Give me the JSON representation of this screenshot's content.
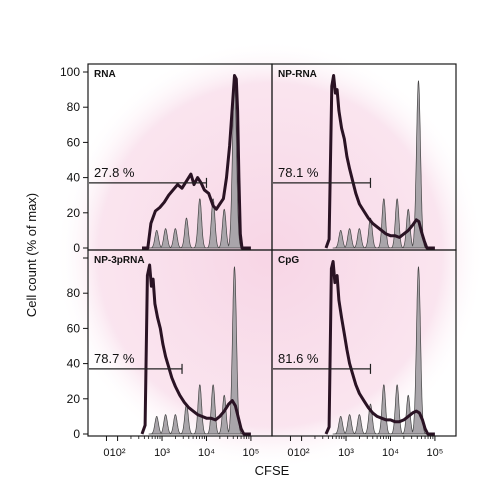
{
  "colors": {
    "background_glow": "#f7d3e4",
    "control_fill": "#a9a5aa",
    "sample_line": "#2a1324",
    "frame": "#1a1a1a"
  },
  "chart_data": {
    "type": "area",
    "layout": "2x2 grid",
    "xlabel": "CFSE",
    "ylabel": "Cell count (% of max)",
    "ylim": [
      0,
      100
    ],
    "y_ticks": [
      "0",
      "20",
      "40",
      "60",
      "80",
      "100"
    ],
    "x_ticks": [
      "0",
      "10²",
      "10³",
      "10⁴",
      "10⁵"
    ],
    "x_scale": "biexponential (log10 CFSE)",
    "gate_y": 37,
    "control_peaks": [
      {
        "x": 2.88,
        "height": 10
      },
      {
        "x": 3.08,
        "height": 11
      },
      {
        "x": 3.3,
        "height": 11
      },
      {
        "x": 3.55,
        "height": 17
      },
      {
        "x": 3.85,
        "height": 28
      },
      {
        "x": 4.15,
        "height": 28
      },
      {
        "x": 4.4,
        "height": 22
      },
      {
        "x": 4.63,
        "height": 95
      }
    ],
    "panels": [
      {
        "name": "RNA",
        "gate_label": "27.8 %",
        "gate_end": 4.0,
        "sample_curve": [
          [
            2.55,
            0
          ],
          [
            2.68,
            0
          ],
          [
            2.75,
            14
          ],
          [
            2.85,
            21
          ],
          [
            2.95,
            23
          ],
          [
            3.05,
            26
          ],
          [
            3.15,
            30
          ],
          [
            3.25,
            33
          ],
          [
            3.35,
            36
          ],
          [
            3.45,
            34
          ],
          [
            3.55,
            38
          ],
          [
            3.65,
            42
          ],
          [
            3.72,
            36
          ],
          [
            3.8,
            40
          ],
          [
            3.88,
            37
          ],
          [
            3.95,
            33
          ],
          [
            4.05,
            31
          ],
          [
            4.15,
            24
          ],
          [
            4.22,
            22
          ],
          [
            4.3,
            25
          ],
          [
            4.38,
            28
          ],
          [
            4.45,
            40
          ],
          [
            4.52,
            58
          ],
          [
            4.58,
            80
          ],
          [
            4.63,
            98
          ],
          [
            4.67,
            96
          ],
          [
            4.7,
            78
          ],
          [
            4.73,
            40
          ],
          [
            4.76,
            8
          ],
          [
            4.8,
            0
          ],
          [
            5.0,
            0
          ]
        ]
      },
      {
        "name": "NP-RNA",
        "gate_label": "78.1 %",
        "gate_end": 3.55,
        "sample_curve": [
          [
            2.55,
            0
          ],
          [
            2.62,
            5
          ],
          [
            2.68,
            92
          ],
          [
            2.72,
            98
          ],
          [
            2.76,
            88
          ],
          [
            2.8,
            90
          ],
          [
            2.84,
            78
          ],
          [
            2.9,
            68
          ],
          [
            2.96,
            62
          ],
          [
            3.02,
            52
          ],
          [
            3.08,
            45
          ],
          [
            3.15,
            38
          ],
          [
            3.22,
            31
          ],
          [
            3.3,
            25
          ],
          [
            3.4,
            21
          ],
          [
            3.5,
            17
          ],
          [
            3.6,
            14
          ],
          [
            3.7,
            12
          ],
          [
            3.8,
            10
          ],
          [
            3.9,
            8
          ],
          [
            4.0,
            7
          ],
          [
            4.1,
            7
          ],
          [
            4.2,
            6
          ],
          [
            4.3,
            8
          ],
          [
            4.4,
            10
          ],
          [
            4.5,
            13
          ],
          [
            4.58,
            16
          ],
          [
            4.64,
            15
          ],
          [
            4.7,
            9
          ],
          [
            4.76,
            4
          ],
          [
            4.82,
            0
          ],
          [
            5.0,
            0
          ]
        ]
      },
      {
        "name": "NP-3pRNA",
        "gate_label": "78.7 %",
        "gate_end": 3.45,
        "sample_curve": [
          [
            2.55,
            0
          ],
          [
            2.62,
            5
          ],
          [
            2.67,
            90
          ],
          [
            2.72,
            96
          ],
          [
            2.76,
            84
          ],
          [
            2.8,
            88
          ],
          [
            2.84,
            74
          ],
          [
            2.9,
            66
          ],
          [
            2.96,
            60
          ],
          [
            3.02,
            51
          ],
          [
            3.08,
            44
          ],
          [
            3.15,
            38
          ],
          [
            3.22,
            32
          ],
          [
            3.3,
            27
          ],
          [
            3.4,
            22
          ],
          [
            3.5,
            18
          ],
          [
            3.6,
            15
          ],
          [
            3.7,
            13
          ],
          [
            3.8,
            11
          ],
          [
            3.9,
            10
          ],
          [
            4.0,
            9
          ],
          [
            4.1,
            9
          ],
          [
            4.2,
            8
          ],
          [
            4.3,
            10
          ],
          [
            4.4,
            13
          ],
          [
            4.5,
            17
          ],
          [
            4.58,
            19
          ],
          [
            4.65,
            16
          ],
          [
            4.72,
            9
          ],
          [
            4.78,
            3
          ],
          [
            4.84,
            0
          ],
          [
            5.0,
            0
          ]
        ]
      },
      {
        "name": "CpG",
        "gate_label": "81.6 %",
        "gate_end": 3.55,
        "sample_curve": [
          [
            2.55,
            0
          ],
          [
            2.62,
            4
          ],
          [
            2.67,
            94
          ],
          [
            2.71,
            98
          ],
          [
            2.75,
            86
          ],
          [
            2.8,
            90
          ],
          [
            2.84,
            76
          ],
          [
            2.9,
            66
          ],
          [
            2.96,
            57
          ],
          [
            3.02,
            48
          ],
          [
            3.08,
            40
          ],
          [
            3.15,
            34
          ],
          [
            3.22,
            28
          ],
          [
            3.3,
            23
          ],
          [
            3.4,
            19
          ],
          [
            3.5,
            15
          ],
          [
            3.6,
            12
          ],
          [
            3.7,
            10
          ],
          [
            3.8,
            9
          ],
          [
            3.9,
            8
          ],
          [
            4.0,
            8
          ],
          [
            4.1,
            7
          ],
          [
            4.2,
            7
          ],
          [
            4.3,
            8
          ],
          [
            4.4,
            10
          ],
          [
            4.5,
            12
          ],
          [
            4.58,
            13
          ],
          [
            4.65,
            12
          ],
          [
            4.72,
            8
          ],
          [
            4.78,
            3
          ],
          [
            4.84,
            0
          ],
          [
            5.0,
            0
          ]
        ]
      }
    ]
  }
}
